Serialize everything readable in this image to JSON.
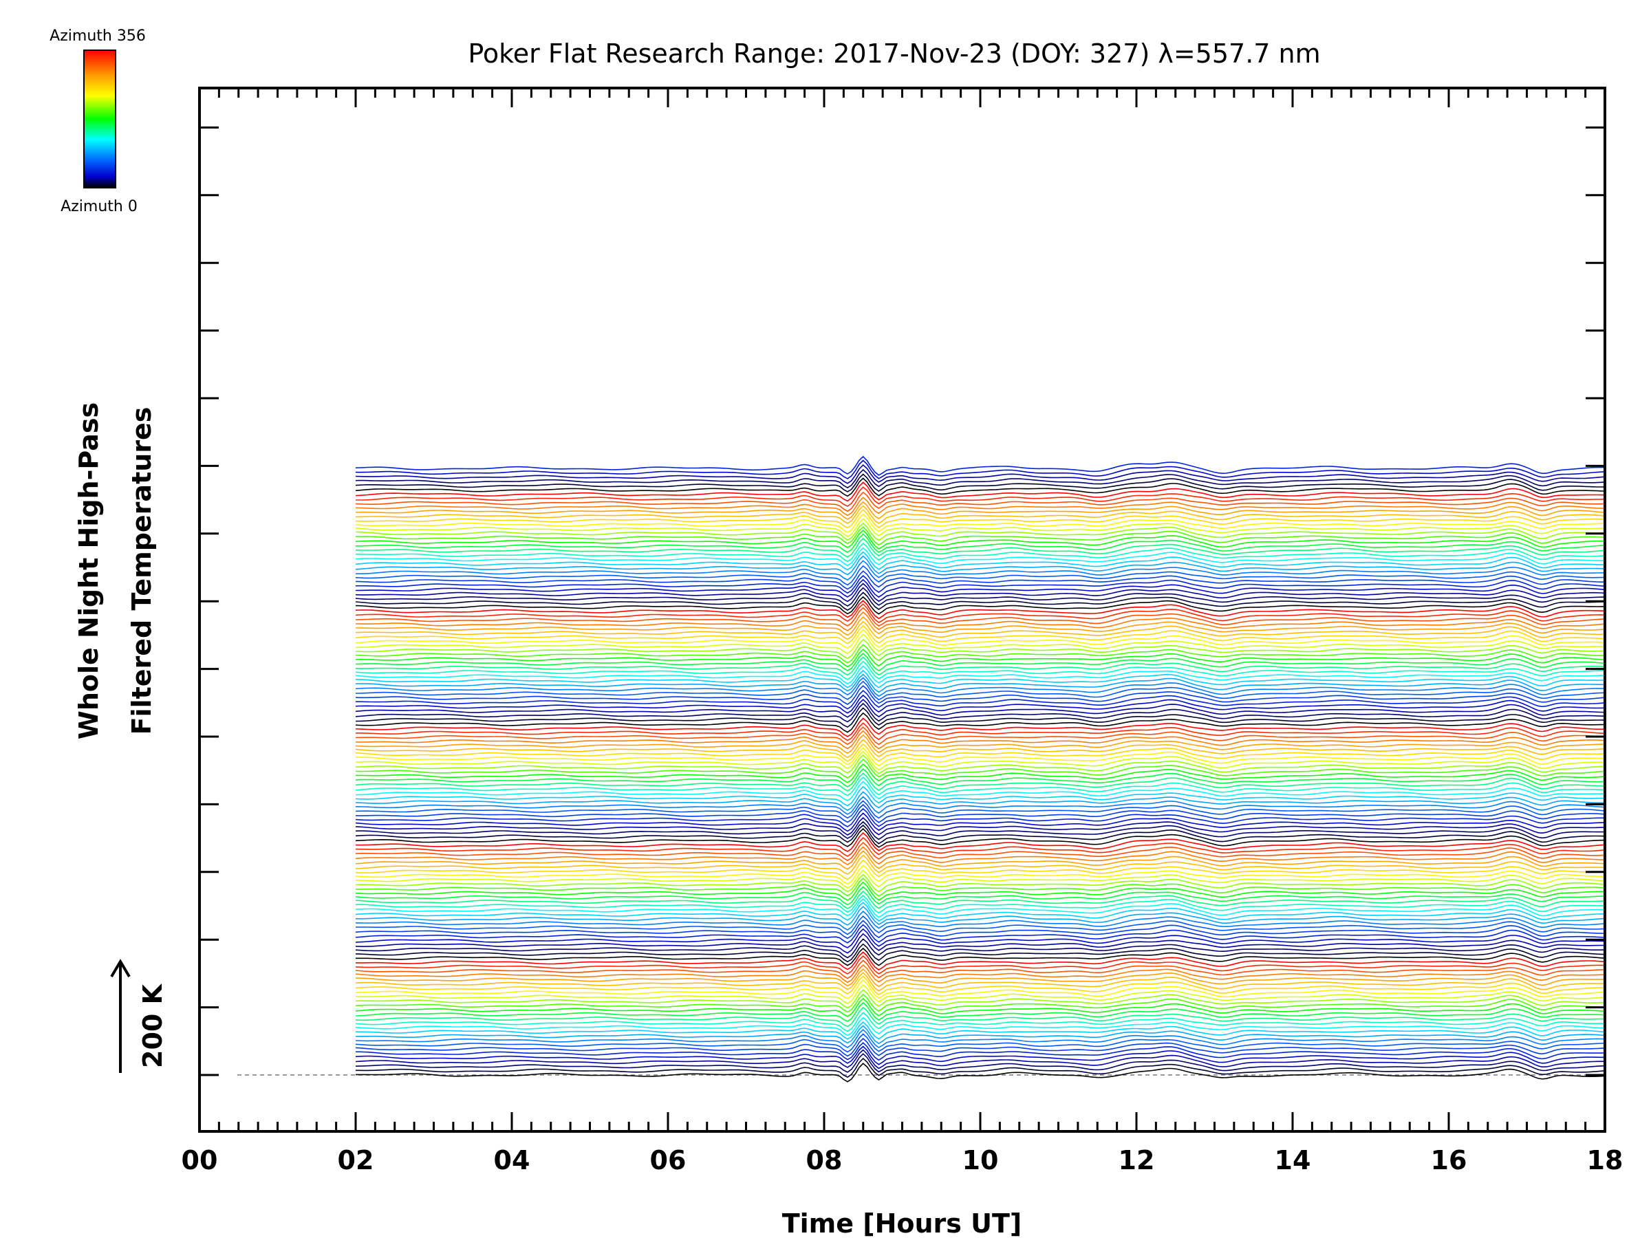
{
  "chart_data": {
    "type": "line",
    "title": "Poker Flat Research Range: 2017-Nov-23 (DOY: 327) λ=557.7 nm",
    "xlabel": "Time [Hours UT]",
    "ylabel_line1": "Whole Night High-Pass",
    "ylabel_line2": "Filtered Temperatures",
    "xlim": [
      0,
      18
    ],
    "x_ticks": [
      "00",
      "02",
      "04",
      "06",
      "08",
      "10",
      "12",
      "14",
      "16",
      "18"
    ],
    "scale_bar_label": "200 K",
    "colorbar": {
      "top_label": "Azimuth 356",
      "bottom_label": "Azimuth 0",
      "colors": [
        "#ff0000",
        "#ff9900",
        "#ffff00",
        "#00ff00",
        "#00ffff",
        "#0066ff",
        "#0000cc",
        "#000000"
      ]
    },
    "data_start_hour": 2.0,
    "data_end_hour": 18.0,
    "series_count": 141,
    "azimuth_range": [
      0,
      356
    ],
    "features": [
      {
        "t": 7.75,
        "amp": 0.5,
        "w": 0.12
      },
      {
        "t": 8.3,
        "amp": -1.0,
        "w": 0.08
      },
      {
        "t": 8.5,
        "amp": 1.6,
        "w": 0.08
      },
      {
        "t": 8.7,
        "amp": -0.9,
        "w": 0.07
      },
      {
        "t": 9.0,
        "amp": 0.3,
        "w": 0.1
      },
      {
        "t": 9.5,
        "amp": -0.4,
        "w": 0.15
      },
      {
        "t": 10.4,
        "amp": 0.2,
        "w": 0.2
      },
      {
        "t": 11.5,
        "amp": -0.3,
        "w": 0.2
      },
      {
        "t": 12.0,
        "amp": 0.5,
        "w": 0.25
      },
      {
        "t": 12.45,
        "amp": 0.8,
        "w": 0.25
      },
      {
        "t": 13.1,
        "amp": -0.5,
        "w": 0.2
      },
      {
        "t": 14.6,
        "amp": 0.15,
        "w": 0.3
      },
      {
        "t": 16.8,
        "amp": 0.7,
        "w": 0.2
      },
      {
        "t": 17.2,
        "amp": -0.6,
        "w": 0.15
      }
    ]
  }
}
